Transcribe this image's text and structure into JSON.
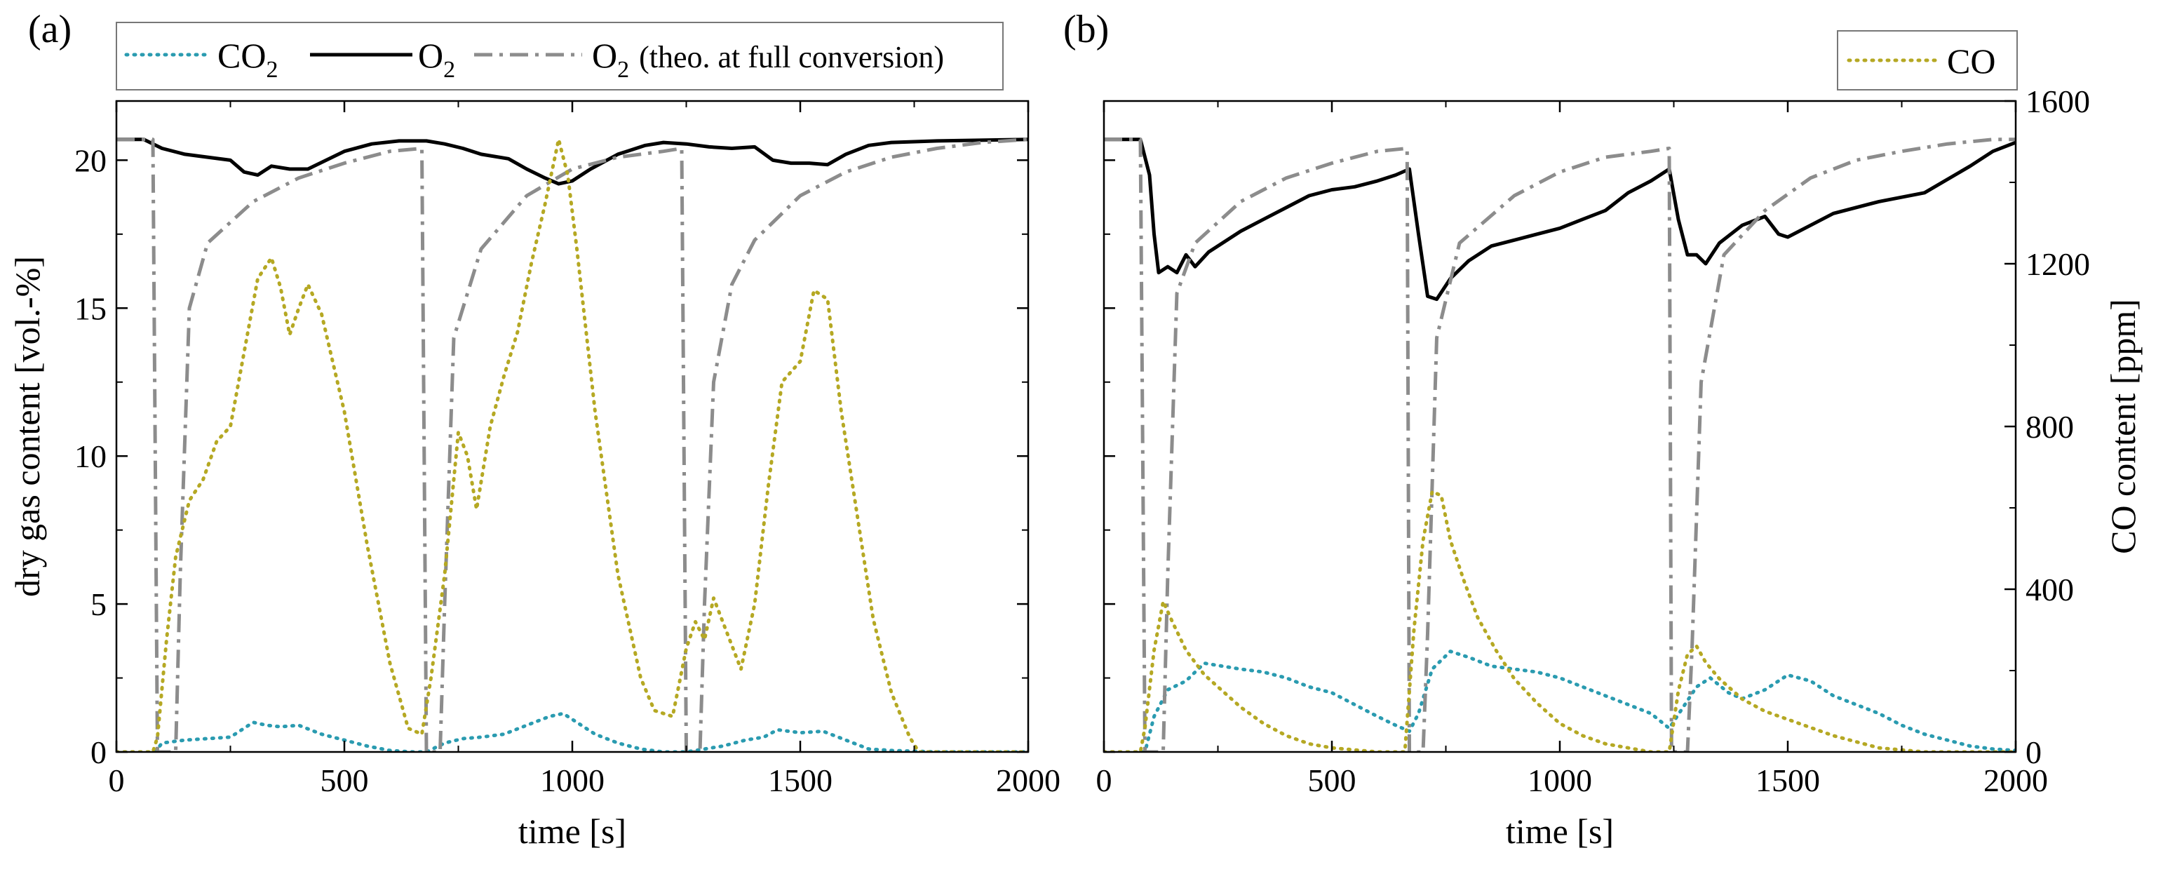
{
  "figure": {
    "panel_a": "(a)",
    "panel_b": "(b)"
  },
  "legend": {
    "co2": "CO",
    "co2_sub": "2",
    "o2": "O",
    "o2_sub": "2",
    "o2_theo_sub": "2",
    "o2_theo_suffix": "(theo. at full conversion)",
    "co": "CO"
  },
  "colors": {
    "co2": "#2a9bb0",
    "o2": "#000000",
    "o2_theo": "#8c8c8c",
    "co": "#b5a823"
  },
  "chart_data": [
    {
      "type": "line",
      "panel": "(a)",
      "xlabel": "time [s]",
      "ylabel": "dry gas content [vol.-%]",
      "xlim": [
        0,
        2000
      ],
      "ylim": [
        0,
        22
      ],
      "xticks": [
        0,
        500,
        1000,
        1500,
        2000
      ],
      "yticks": [
        0,
        5,
        10,
        15,
        20
      ],
      "series": [
        {
          "name": "CO2",
          "style": "dotted",
          "x": [
            0,
            85,
            100,
            150,
            200,
            250,
            300,
            330,
            360,
            400,
            450,
            500,
            550,
            600,
            650,
            680,
            720,
            760,
            800,
            850,
            900,
            950,
            980,
            1000,
            1050,
            1100,
            1150,
            1200,
            1250,
            1290,
            1330,
            1380,
            1420,
            1450,
            1500,
            1550,
            1600,
            1650,
            1700,
            1800,
            2000
          ],
          "y": [
            0,
            0,
            0.3,
            0.4,
            0.45,
            0.5,
            1.0,
            0.9,
            0.85,
            0.9,
            0.6,
            0.4,
            0.2,
            0.05,
            0,
            0,
            0.3,
            0.45,
            0.5,
            0.6,
            0.9,
            1.2,
            1.3,
            1.1,
            0.6,
            0.3,
            0.1,
            0,
            0,
            0.1,
            0.2,
            0.4,
            0.5,
            0.75,
            0.65,
            0.7,
            0.4,
            0.1,
            0.05,
            0,
            0
          ]
        },
        {
          "name": "O2",
          "style": "solid",
          "x": [
            0,
            60,
            100,
            150,
            200,
            250,
            280,
            310,
            340,
            380,
            420,
            460,
            500,
            560,
            620,
            680,
            720,
            760,
            800,
            860,
            900,
            940,
            970,
            1000,
            1040,
            1100,
            1160,
            1200,
            1250,
            1300,
            1350,
            1400,
            1440,
            1480,
            1520,
            1560,
            1600,
            1650,
            1700,
            1800,
            2000
          ],
          "y": [
            20.7,
            20.7,
            20.4,
            20.2,
            20.1,
            20.0,
            19.6,
            19.5,
            19.8,
            19.7,
            19.7,
            20.0,
            20.3,
            20.55,
            20.65,
            20.65,
            20.55,
            20.4,
            20.2,
            20.05,
            19.7,
            19.4,
            19.2,
            19.3,
            19.7,
            20.2,
            20.5,
            20.6,
            20.55,
            20.45,
            20.4,
            20.45,
            20.0,
            19.9,
            19.9,
            19.85,
            20.2,
            20.5,
            20.6,
            20.65,
            20.7
          ]
        },
        {
          "name": "O2 (theo. at full conversion)",
          "style": "dashdot",
          "x": [
            0,
            80,
            90,
            130,
            140,
            160,
            200,
            300,
            400,
            500,
            600,
            670,
            680,
            710,
            720,
            740,
            800,
            900,
            1000,
            1100,
            1200,
            1240,
            1250,
            1280,
            1290,
            1310,
            1350,
            1400,
            1500,
            1600,
            1700,
            1800,
            1900,
            2000
          ],
          "y": [
            20.7,
            20.7,
            0,
            0,
            6,
            15,
            17.2,
            18.6,
            19.4,
            19.9,
            20.3,
            20.4,
            0,
            0,
            5,
            14,
            17.0,
            18.8,
            19.7,
            20.1,
            20.3,
            20.4,
            0,
            0,
            5,
            12.5,
            15.8,
            17.3,
            18.8,
            19.6,
            20.1,
            20.4,
            20.6,
            20.7
          ]
        },
        {
          "name": "CO",
          "style": "dotted",
          "x": [
            0,
            80,
            90,
            110,
            130,
            160,
            190,
            220,
            250,
            280,
            310,
            340,
            360,
            380,
            400,
            420,
            450,
            500,
            550,
            600,
            640,
            670,
            690,
            720,
            750,
            770,
            790,
            820,
            850,
            880,
            910,
            940,
            970,
            990,
            1010,
            1050,
            1100,
            1150,
            1180,
            1220,
            1250,
            1270,
            1290,
            1310,
            1340,
            1370,
            1400,
            1430,
            1460,
            1500,
            1530,
            1560,
            1590,
            1620,
            1660,
            1700,
            1740,
            1760,
            1800,
            2000
          ],
          "y": [
            0,
            0,
            0.5,
            3.8,
            6.6,
            8.5,
            9.2,
            10.5,
            11.0,
            13.5,
            16.0,
            16.7,
            15.7,
            14.1,
            15.0,
            15.8,
            14.8,
            11.5,
            7.0,
            3.0,
            0.8,
            0.6,
            2.5,
            6.0,
            10.8,
            10.0,
            8.2,
            11.0,
            12.7,
            14.2,
            16.5,
            18.5,
            20.7,
            19.5,
            17.0,
            11.5,
            6.0,
            2.5,
            1.4,
            1.2,
            3.5,
            4.4,
            3.8,
            5.2,
            4.0,
            2.8,
            5.0,
            9.0,
            12.5,
            13.2,
            15.6,
            15.3,
            11.5,
            8.5,
            4.5,
            2.0,
            0.5,
            0,
            0,
            0
          ]
        }
      ]
    },
    {
      "type": "line",
      "panel": "(b)",
      "xlabel": "time [s]",
      "ylabel_right": "CO content [ppm]",
      "xlim": [
        0,
        2000
      ],
      "ylim_left": [
        0,
        22
      ],
      "ylim_right": [
        0,
        1600
      ],
      "xticks": [
        0,
        500,
        1000,
        1500,
        2000
      ],
      "yticks_right": [
        0,
        400,
        800,
        1200,
        1600
      ],
      "series": [
        {
          "name": "CO2",
          "style": "dotted",
          "axis": "left",
          "x": [
            0,
            90,
            110,
            140,
            180,
            220,
            260,
            300,
            350,
            400,
            450,
            500,
            550,
            600,
            640,
            670,
            690,
            720,
            760,
            800,
            850,
            900,
            950,
            1000,
            1050,
            1100,
            1150,
            1200,
            1240,
            1270,
            1300,
            1330,
            1370,
            1400,
            1450,
            1500,
            1550,
            1600,
            1650,
            1700,
            1750,
            1800,
            1850,
            1900,
            1950,
            2000
          ],
          "y": [
            0,
            0,
            1.2,
            2.1,
            2.4,
            3.0,
            2.9,
            2.8,
            2.7,
            2.5,
            2.2,
            2.0,
            1.6,
            1.2,
            0.9,
            0.7,
            1.3,
            2.8,
            3.4,
            3.2,
            2.9,
            2.8,
            2.7,
            2.5,
            2.2,
            1.9,
            1.6,
            1.3,
            0.8,
            1.5,
            2.2,
            2.5,
            2.0,
            1.8,
            2.1,
            2.6,
            2.4,
            1.9,
            1.6,
            1.3,
            0.9,
            0.6,
            0.4,
            0.2,
            0.1,
            0.05
          ]
        },
        {
          "name": "O2",
          "style": "solid",
          "axis": "left",
          "x": [
            0,
            80,
            100,
            110,
            120,
            140,
            160,
            180,
            200,
            230,
            260,
            300,
            350,
            400,
            450,
            500,
            550,
            600,
            640,
            670,
            690,
            710,
            730,
            760,
            800,
            850,
            900,
            950,
            1000,
            1050,
            1100,
            1150,
            1200,
            1240,
            1260,
            1280,
            1300,
            1320,
            1350,
            1400,
            1450,
            1480,
            1500,
            1550,
            1600,
            1700,
            1800,
            1900,
            1950,
            2000
          ],
          "y": [
            20.7,
            20.7,
            19.5,
            17.5,
            16.2,
            16.4,
            16.2,
            16.8,
            16.4,
            16.9,
            17.2,
            17.6,
            18.0,
            18.4,
            18.8,
            19.0,
            19.1,
            19.3,
            19.5,
            19.7,
            17.5,
            15.4,
            15.3,
            16.0,
            16.6,
            17.1,
            17.3,
            17.5,
            17.7,
            18.0,
            18.3,
            18.9,
            19.3,
            19.7,
            18.0,
            16.8,
            16.8,
            16.5,
            17.2,
            17.8,
            18.1,
            17.5,
            17.4,
            17.8,
            18.2,
            18.6,
            18.9,
            19.8,
            20.3,
            20.6
          ]
        },
        {
          "name": "O2 (theo. at full conversion)",
          "style": "dashdot",
          "axis": "left",
          "x": [
            0,
            80,
            90,
            130,
            140,
            160,
            200,
            300,
            400,
            500,
            600,
            665,
            670,
            700,
            710,
            730,
            780,
            900,
            1000,
            1100,
            1200,
            1240,
            1245,
            1280,
            1290,
            1310,
            1360,
            1450,
            1550,
            1650,
            1750,
            1850,
            1950,
            2000
          ],
          "y": [
            20.7,
            20.7,
            0,
            0,
            6,
            15.5,
            17.2,
            18.6,
            19.4,
            19.9,
            20.3,
            20.4,
            0,
            0,
            4,
            14,
            17.2,
            18.8,
            19.6,
            20.1,
            20.3,
            20.4,
            0,
            0,
            3.5,
            12.5,
            16.8,
            18.3,
            19.4,
            20.0,
            20.3,
            20.55,
            20.7,
            20.7
          ]
        },
        {
          "name": "CO",
          "style": "dotted",
          "axis": "right",
          "x": [
            0,
            80,
            90,
            110,
            130,
            150,
            180,
            220,
            260,
            300,
            350,
            400,
            450,
            500,
            550,
            600,
            660,
            680,
            700,
            720,
            740,
            760,
            790,
            820,
            860,
            900,
            950,
            1000,
            1050,
            1100,
            1150,
            1200,
            1240,
            1260,
            1280,
            1300,
            1320,
            1350,
            1400,
            1450,
            1500,
            1550,
            1600,
            1650,
            1700,
            1750,
            1800,
            2000
          ],
          "y": [
            0,
            0,
            60,
            250,
            370,
            320,
            250,
            190,
            150,
            110,
            70,
            40,
            20,
            10,
            5,
            0,
            0,
            300,
            520,
            640,
            630,
            520,
            420,
            330,
            250,
            180,
            120,
            70,
            40,
            20,
            10,
            0,
            0,
            150,
            240,
            260,
            220,
            180,
            130,
            100,
            80,
            60,
            40,
            25,
            10,
            5,
            0,
            0
          ]
        }
      ]
    }
  ]
}
